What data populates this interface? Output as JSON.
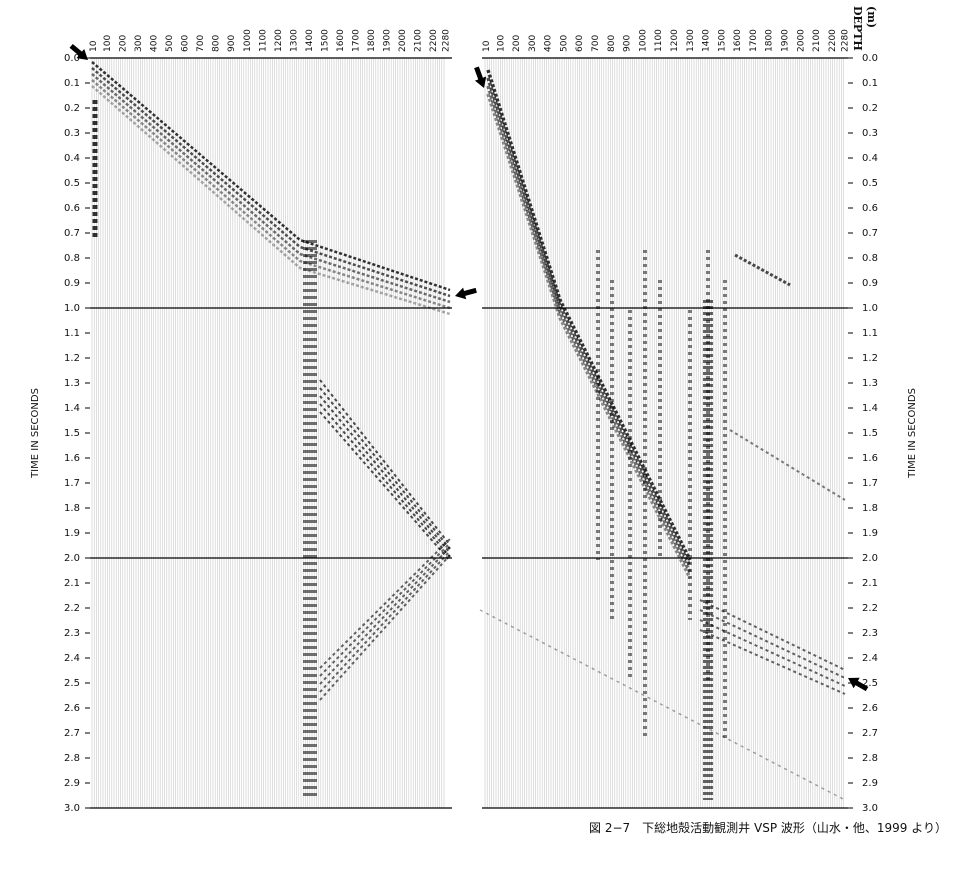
{
  "figure": {
    "depth_labels": [
      10,
      100,
      200,
      300,
      400,
      500,
      600,
      700,
      800,
      900,
      1000,
      1100,
      1200,
      1300,
      1400,
      1500,
      1600,
      1700,
      1800,
      1900,
      2000,
      2100,
      2200,
      2280
    ],
    "time_labels": [
      "0.0",
      "0.1",
      "0.2",
      "0.3",
      "0.4",
      "0.5",
      "0.6",
      "0.7",
      "0.8",
      "0.9",
      "1.0",
      "1.1",
      "1.2",
      "1.3",
      "1.4",
      "1.5",
      "1.6",
      "1.7",
      "1.8",
      "1.9",
      "2.0",
      "2.1",
      "2.2",
      "2.3",
      "2.4",
      "2.5",
      "2.6",
      "2.7",
      "2.8",
      "2.9",
      "3.0"
    ],
    "time_axis_title": "TIME IN SECONDS",
    "depth_axis_title": "DEPTH",
    "depth_unit": "(m)",
    "caption": "図 2−7　下総地殻活動観測井 VSP 波形（山水・他、1999 より）"
  }
}
